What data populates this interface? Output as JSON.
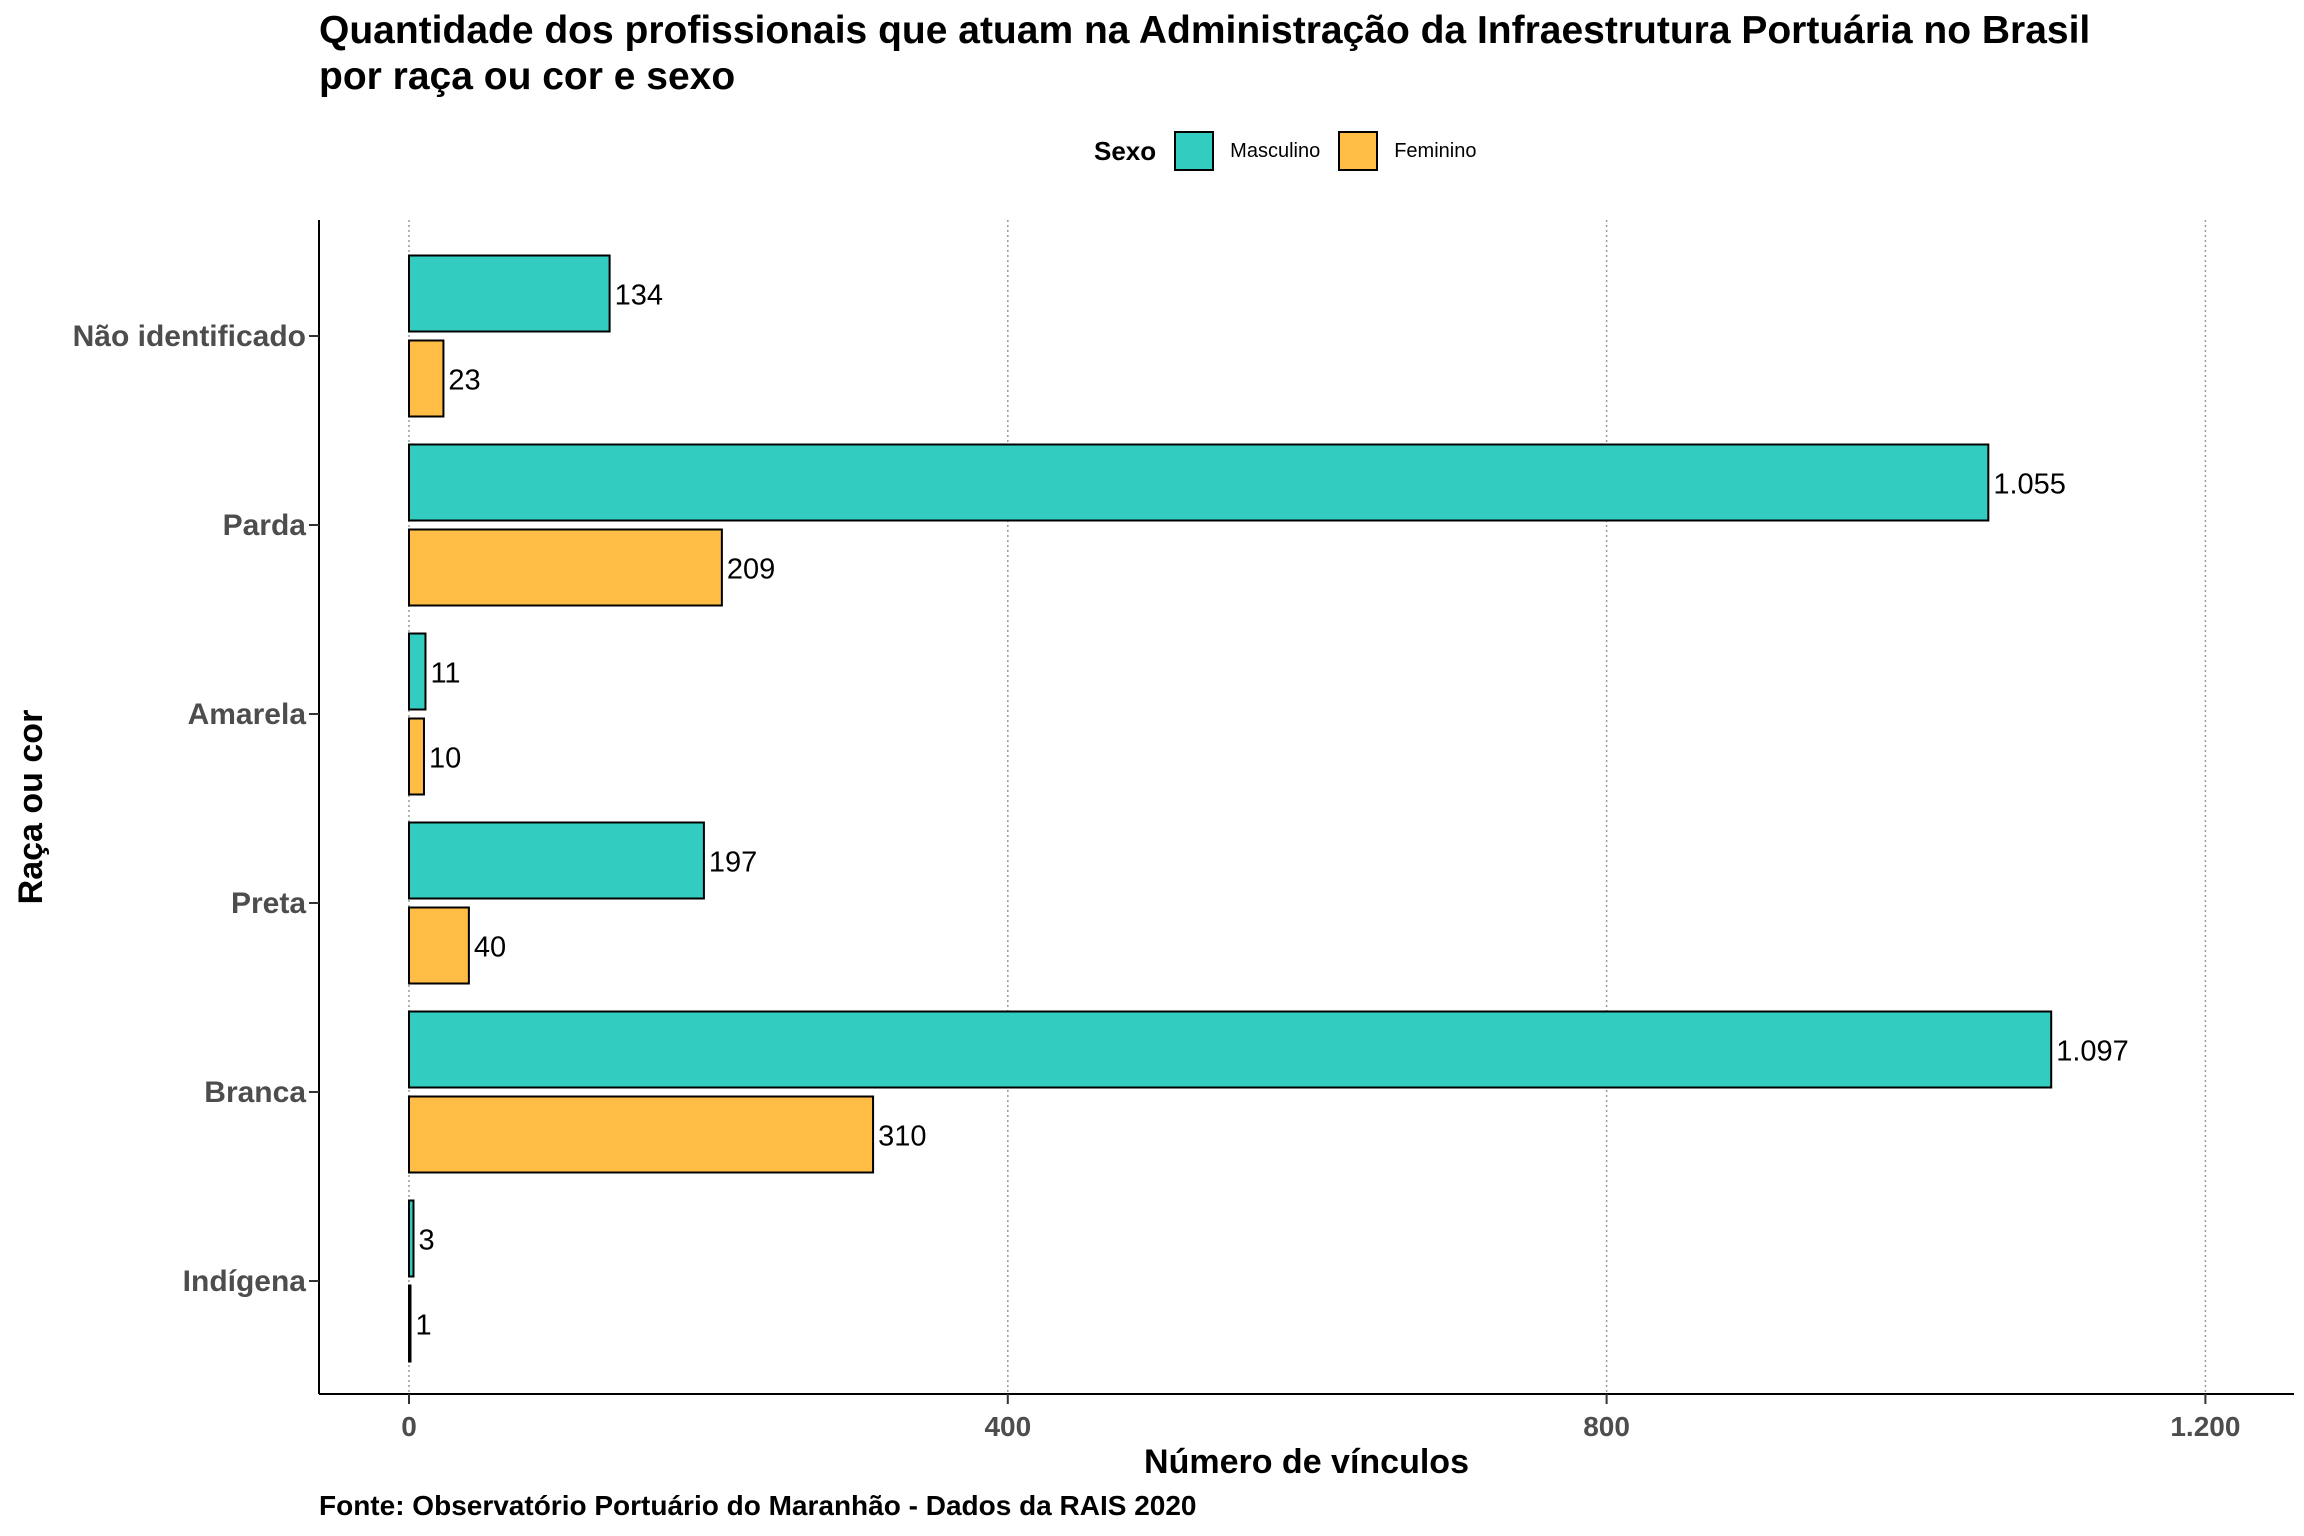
{
  "chart_data": {
    "type": "bar",
    "orientation": "horizontal",
    "title": "Quantidade dos profissionais que atuam na Administração da Infraestrutura Portuária no Brasil",
    "subtitle": "por raça ou cor e sexo",
    "xlabel": "Número de vínculos",
    "ylabel": "Raça ou cor",
    "xlim": [
      0,
      1250
    ],
    "x_ticks": [
      0,
      400,
      800,
      1200
    ],
    "x_tick_labels": [
      "0",
      "400",
      "800",
      "1.200"
    ],
    "grid": "vertical dotted major",
    "legend_position": "top",
    "legend_title": "Sexo",
    "categories": [
      "Não identificado",
      "Parda",
      "Amarela",
      "Preta",
      "Branca",
      "Indígena"
    ],
    "series": [
      {
        "name": "Masculino",
        "color": "#33CCC1",
        "values": [
          134,
          1055,
          11,
          197,
          1097,
          3
        ],
        "labels": [
          "134",
          "1.055",
          "11",
          "197",
          "1.097",
          "3"
        ]
      },
      {
        "name": "Feminino",
        "color": "#FFBD45",
        "values": [
          23,
          209,
          10,
          40,
          310,
          1
        ],
        "labels": [
          "23",
          "209",
          "10",
          "40",
          "310",
          "1"
        ]
      }
    ],
    "caption": "Fonte: Observatório Portuário do Maranhão - Dados da RAIS 2020"
  }
}
